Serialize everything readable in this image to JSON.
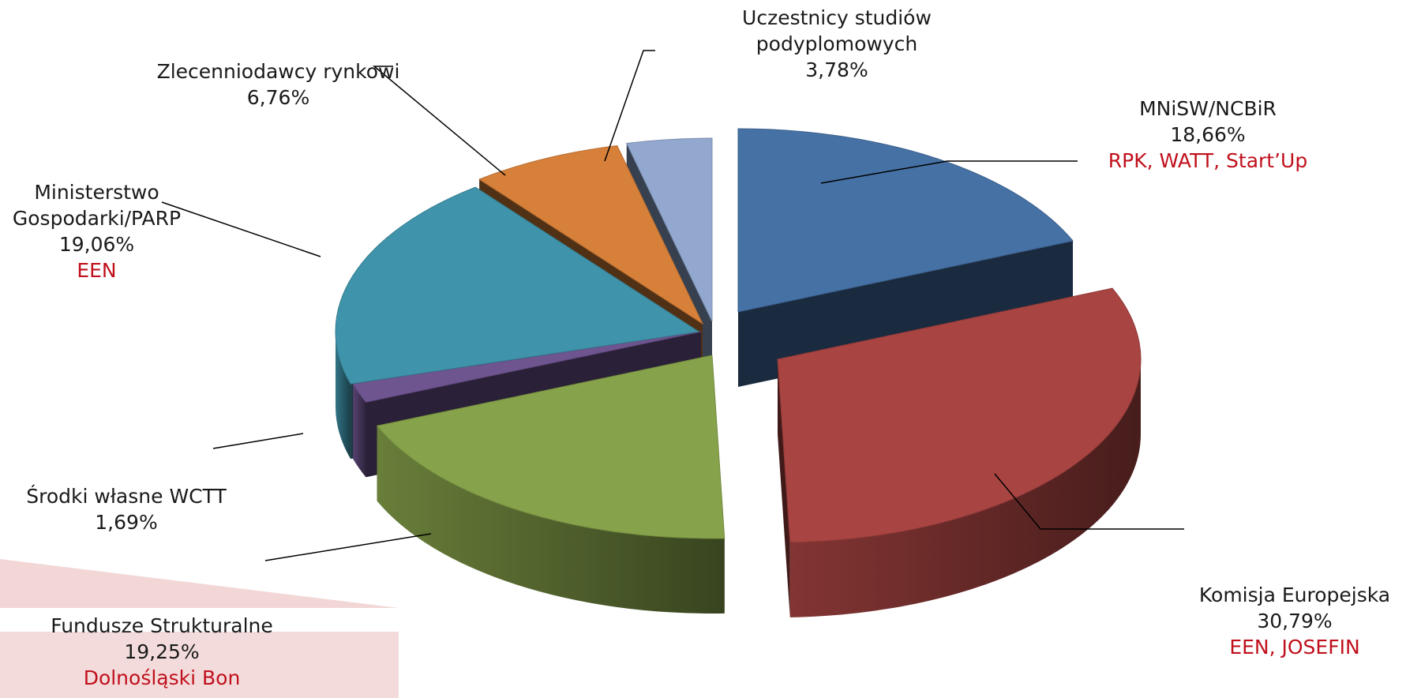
{
  "chart_data": {
    "type": "pie",
    "style": "3d-exploded",
    "unit": "%",
    "slices": [
      {
        "label": "MNiSW/NCBiR",
        "value_text": "18,66%",
        "value": 18.66,
        "note": "RPK, WATT, Start’Up",
        "color": "#4671A5"
      },
      {
        "label": "Komisja Europejska",
        "value_text": "30,79%",
        "value": 30.79,
        "note": "EEN, JOSEFIN",
        "color": "#A84442"
      },
      {
        "label": "Fundusze Strukturalne",
        "value_text": "19,25%",
        "value": 19.25,
        "note": "Dolnośląski Bon",
        "color": "#86A24A"
      },
      {
        "label": "Środki własne WCTT",
        "value_text": "1,69%",
        "value": 1.69,
        "note": "",
        "color": "#6E5590"
      },
      {
        "label": "Ministerstwo Gospodarki/PARP",
        "label_lines": [
          "Ministerstwo",
          "Gospodarki/PARP"
        ],
        "value_text": "19,06%",
        "value": 19.06,
        "note": "EEN",
        "color": "#3F93AA"
      },
      {
        "label": "Zleceniodawcy rynkowi",
        "label_text": "Zlecenniodawcy rynkowi",
        "value_text": "6,76%",
        "value": 6.76,
        "note": "",
        "color": "#D6803A"
      },
      {
        "label": "Uczestnicy studiów podyplomowych",
        "label_lines": [
          "Uczestnicy studiów",
          "podyplomowych"
        ],
        "value_text": "3,78%",
        "value": 3.78,
        "note": "",
        "color": "#92A8CF"
      }
    ]
  },
  "labels": {
    "mnisw": {
      "l1": "MNiSW/NCBiR",
      "l2": "18,66%",
      "note": "RPK, WATT, Start’Up"
    },
    "ke": {
      "l1": "Komisja Europejska",
      "l2": "30,79%",
      "note": "EEN, JOSEFIN"
    },
    "fs": {
      "l1": "Fundusze Strukturalne",
      "l2": "19,25%",
      "note": "Dolnośląski Bon"
    },
    "sw": {
      "l1": "Środki własne WCTT",
      "l2": "1,69%"
    },
    "mg": {
      "l1": "Ministerstwo",
      "l2": "Gospodarki/PARP",
      "l3": "19,06%",
      "note": "EEN"
    },
    "zr": {
      "l1": "Zlecenniodawcy rynkowi",
      "l2": "6,76%"
    },
    "us": {
      "l1": "Uczestnicy studiów",
      "l2": "podyplomowych",
      "l3": "3,78%"
    }
  }
}
